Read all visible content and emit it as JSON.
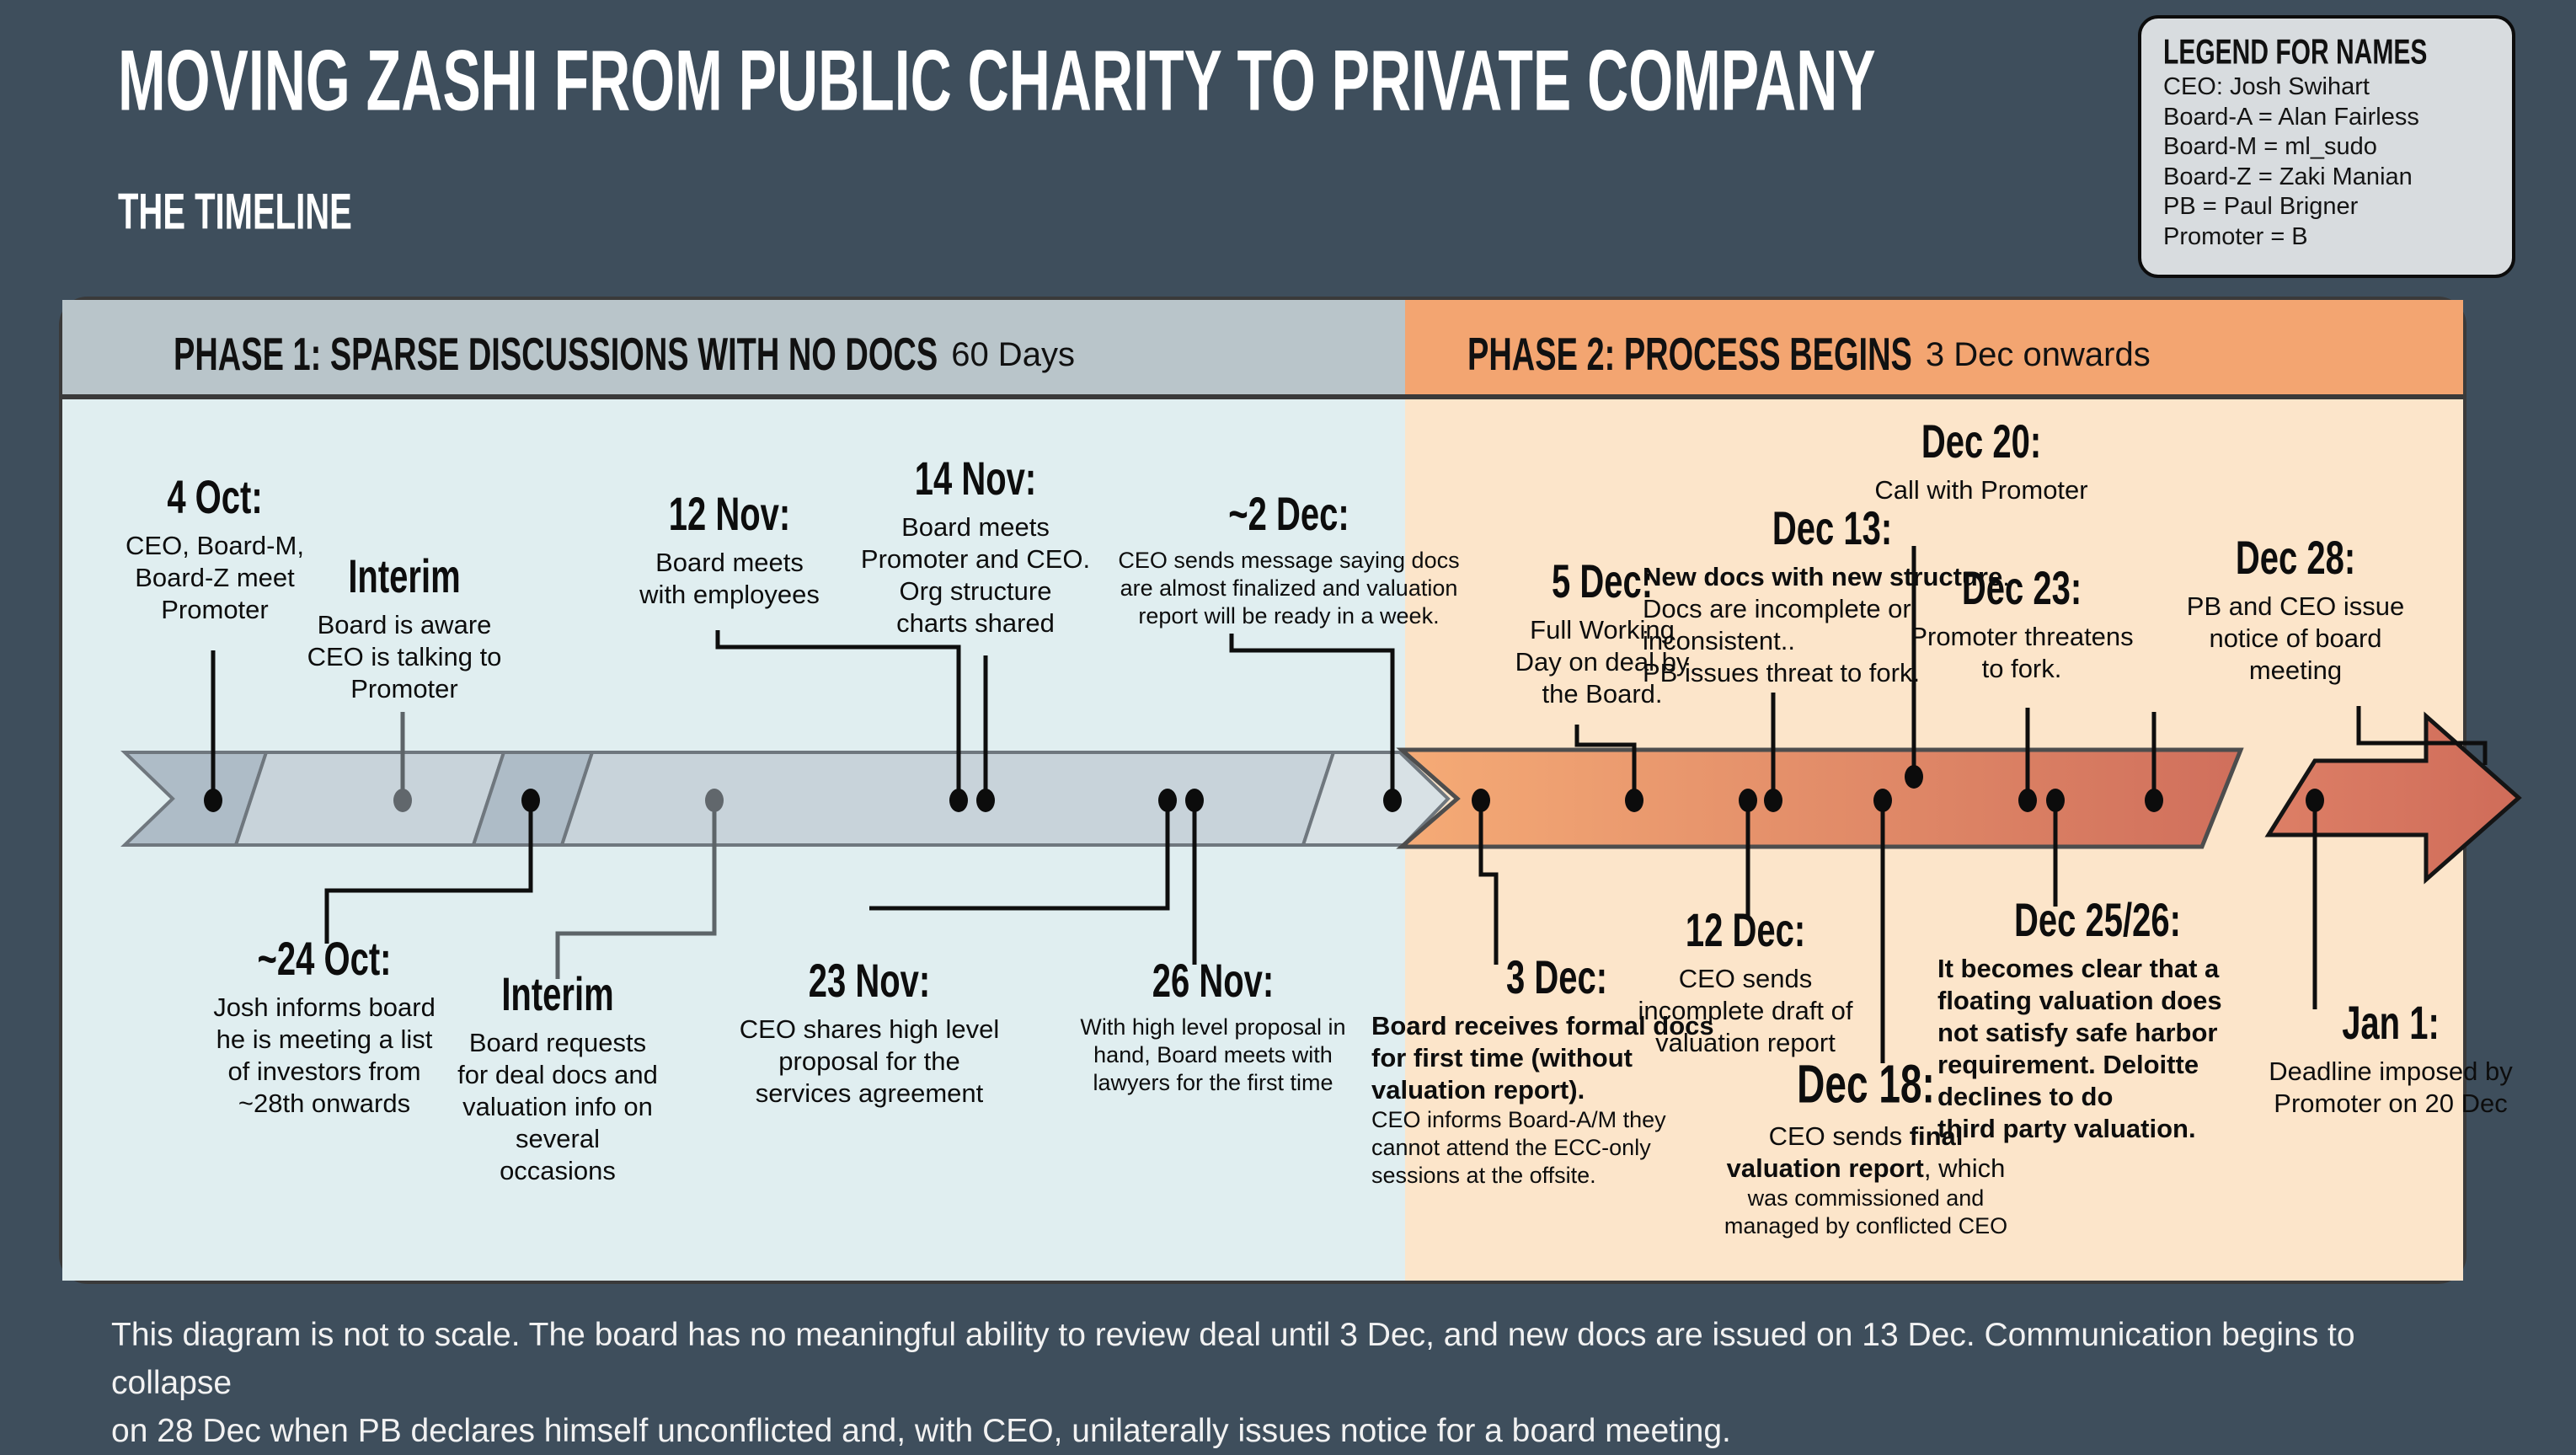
{
  "title": "MOVING ZASHI FROM PUBLIC CHARITY TO PRIVATE COMPANY",
  "subtitle": "THE TIMELINE",
  "legend": {
    "title": "LEGEND FOR NAMES",
    "items": [
      "CEO: Josh Swihart",
      "Board-A = Alan Fairless",
      "Board-M = ml_sudo",
      "Board-Z = Zaki Manian",
      "PB = Paul Brigner",
      "Promoter = B"
    ]
  },
  "phases": [
    {
      "title": "PHASE 1: SPARSE DISCUSSIONS WITH NO DOCS",
      "suffix": "60 Days"
    },
    {
      "title": "PHASE 2: PROCESS BEGINS",
      "suffix": "3 Dec onwards"
    }
  ],
  "events": {
    "four_oct": {
      "date": "4 Oct:",
      "lines": [
        "CEO, Board-M,",
        "Board-Z meet",
        "Promoter"
      ]
    },
    "interim_top": {
      "date": "Interim",
      "lines": [
        "Board is aware",
        "CEO is talking to",
        "Promoter"
      ]
    },
    "twelve_nov": {
      "date": "12 Nov:",
      "lines": [
        "Board meets",
        "with employees"
      ]
    },
    "fourteen_nov": {
      "date": "14 Nov:",
      "lines": [
        "Board meets",
        "Promoter and CEO.",
        "Org structure",
        "charts shared"
      ]
    },
    "two_dec": {
      "date": "~2 Dec:",
      "lines": [
        "CEO sends message saying docs",
        "are almost finalized and valuation",
        "report will be ready in a week."
      ]
    },
    "twentyfour_oct": {
      "date": "~24 Oct:",
      "lines": [
        "Josh informs board",
        "he is meeting a list",
        "of investors from",
        "~28th onwards"
      ]
    },
    "interim_bottom": {
      "date": "Interim",
      "lines": [
        "Board requests",
        "for deal docs and",
        "valuation info on",
        "several",
        "occasions"
      ]
    },
    "twentythree_nov": {
      "date": "23 Nov:",
      "lines": [
        "CEO shares high level",
        "proposal for the",
        "services agreement"
      ]
    },
    "twentysix_nov": {
      "date": "26 Nov:",
      "lines": [
        "With high level proposal in",
        "hand, Board meets with",
        "lawyers for the first time"
      ]
    },
    "five_dec": {
      "date": "5 Dec:",
      "lines": [
        "Full Working",
        "Day on deal by",
        "the Board."
      ]
    },
    "dec_13": {
      "date": "Dec 13:",
      "bold": "New docs with new structure",
      "rest": ". Docs are incomplete or inconsistent..",
      "last": "PB issues threat to fork."
    },
    "dec_20": {
      "date": "Dec 20:",
      "lines": [
        "Call with Promoter"
      ]
    },
    "dec_23": {
      "date": "Dec 23:",
      "lines": [
        "Promoter threatens",
        "to fork."
      ]
    },
    "dec_28": {
      "date": "Dec 28:",
      "lines": [
        "PB and CEO issue",
        "notice of board",
        "meeting"
      ]
    },
    "three_dec": {
      "date": "3 Dec:",
      "bold_lines": [
        "Board receives formal docs",
        "for first time (without",
        "valuation report)."
      ],
      "small_lines": [
        "CEO informs Board-A/M they",
        "cannot attend the ECC-only",
        "sessions at the offsite."
      ]
    },
    "twelve_dec": {
      "date": "12 Dec:",
      "lines": [
        "CEO sends",
        "incomplete draft of",
        "valuation report"
      ]
    },
    "dec_18": {
      "date": "Dec 18:",
      "l1r": "CEO sends ",
      "l1b": "final",
      "l2b": "valuation report",
      "l2r": ", which",
      "small_lines": [
        "was commissioned and",
        "managed by conflicted CEO"
      ]
    },
    "dec_25_26": {
      "date": "Dec 25/26:",
      "lines": [
        "It becomes clear that a",
        "floating valuation does",
        "not satisfy safe harbor",
        "requirement. Deloitte",
        "declines to do",
        "third party valuation."
      ]
    },
    "jan_1": {
      "date": "Jan 1:",
      "lines": [
        "Deadline imposed by",
        "Promoter on 20 Dec"
      ]
    }
  },
  "footer": {
    "line1": "This diagram is not to scale. The board has no meaningful ability to review deal until 3 Dec, and new docs are issued on 13 Dec. Communication begins to collapse",
    "line2": "on 28 Dec when PB declares himself unconflicted and, with CEO, unilaterally issues notice for a board meeting."
  },
  "colors": {
    "background": "#3e4e5c",
    "phase1_header": "#b9c5ca",
    "phase2_header": "#f3a571",
    "phase1_body": "#e0eef0",
    "phase2_body": "#fce5ca",
    "band_dark": "#aebcc7",
    "band_light": "#c8d3da",
    "band_tip": "#d8e1e5",
    "phase2_band_start": "#f5ab76",
    "phase2_band_end": "#d06f5c",
    "arrow": "#d4705c",
    "legend_bg": "#d8dcdf",
    "interim_gray": "#61676c",
    "ink": "#111111"
  }
}
